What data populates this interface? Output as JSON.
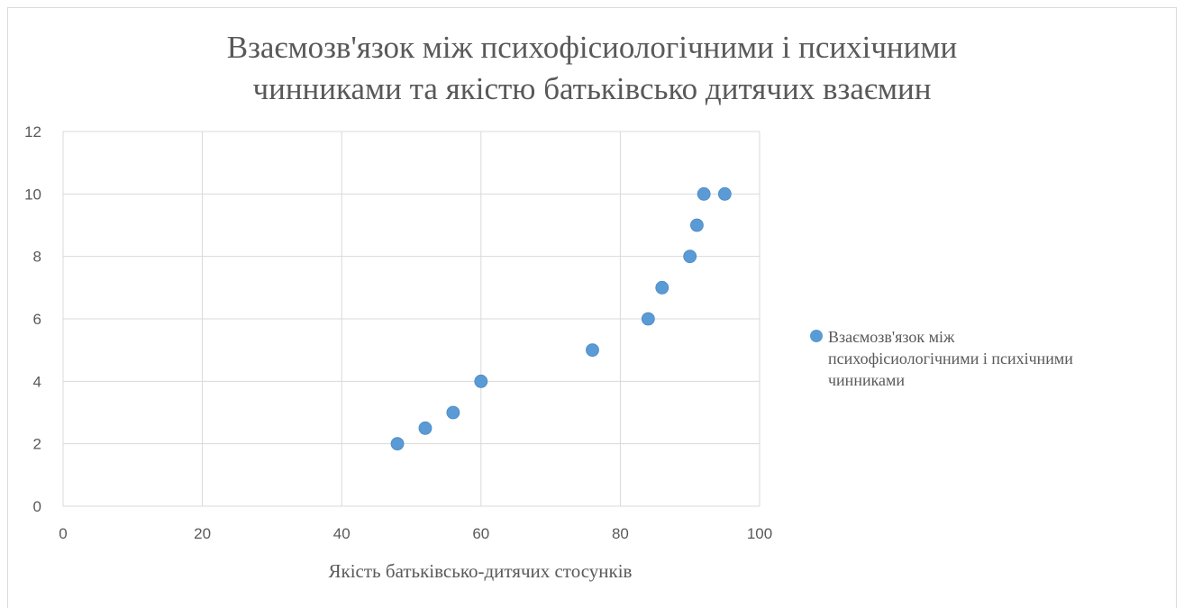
{
  "colors": {
    "series": "#5b9bd5",
    "grid": "#d9d9d9",
    "text": "#595959"
  },
  "chart_data": {
    "type": "scatter",
    "title": "Взаємозв'язок між психофізіологічними і психічними чинниками та якістю батьківсько дитячих взаємин",
    "title_lines": [
      "Взаємозв'язок між психофісиологічними і психічними",
      "чинниками та якістю батьківсько дитячих взаємин"
    ],
    "xlabel": "Якість батьківсько-дитячих стосунків",
    "ylabel": "",
    "xlim": [
      0,
      100
    ],
    "ylim": [
      0,
      12
    ],
    "x_ticks": [
      0,
      20,
      40,
      60,
      80,
      100
    ],
    "y_ticks": [
      0,
      2,
      4,
      6,
      8,
      10,
      12
    ],
    "grid": true,
    "legend_position": "right",
    "series": [
      {
        "name": "Взаємозв'язок між психофісиологічними і психічними чинниками",
        "legend_lines": [
          "Взаємозв'язок між",
          "психофісиологічними і психічними",
          "чинниками"
        ],
        "points": [
          {
            "x": 48,
            "y": 2
          },
          {
            "x": 52,
            "y": 2.5
          },
          {
            "x": 56,
            "y": 3
          },
          {
            "x": 60,
            "y": 4
          },
          {
            "x": 76,
            "y": 5
          },
          {
            "x": 84,
            "y": 6
          },
          {
            "x": 86,
            "y": 7
          },
          {
            "x": 90,
            "y": 8
          },
          {
            "x": 91,
            "y": 9
          },
          {
            "x": 92,
            "y": 10
          },
          {
            "x": 95,
            "y": 10
          }
        ]
      }
    ]
  }
}
